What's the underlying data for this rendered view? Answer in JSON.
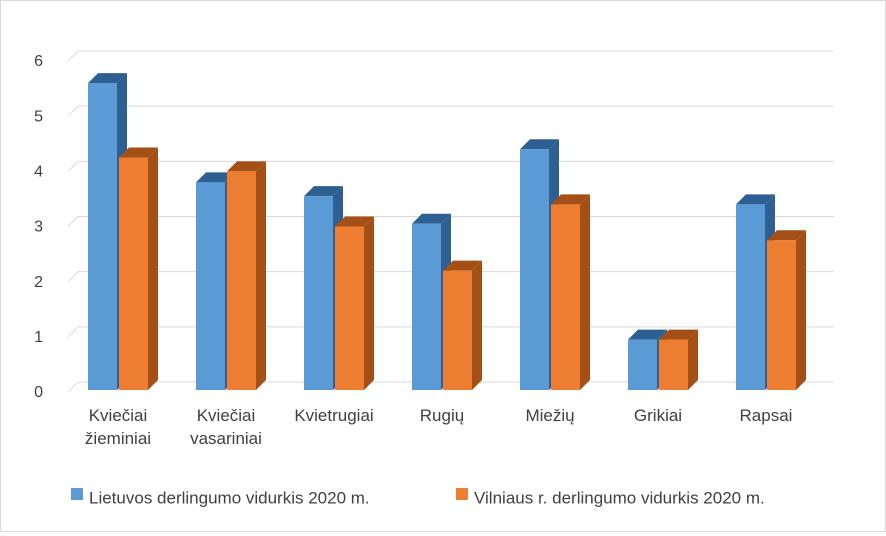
{
  "chart_data": {
    "type": "bar",
    "style": "3d-clustered-column",
    "title": "",
    "xlabel": "",
    "ylabel": "",
    "ylim": [
      0,
      6
    ],
    "yticks": [
      0,
      1,
      2,
      3,
      4,
      5,
      6
    ],
    "grid": true,
    "legend_position": "bottom",
    "categories": [
      [
        "Kviečiai",
        "žieminiai"
      ],
      [
        "Kviečiai",
        "vasariniai"
      ],
      [
        "Kvietrugiai"
      ],
      [
        "Rugių"
      ],
      [
        "Miežių"
      ],
      [
        "Grikiai"
      ],
      [
        "Rapsai"
      ]
    ],
    "series": [
      {
        "name": "Lietuvos derlingumo vidurkis 2020 m.",
        "color": "#5b9bd5",
        "side_color": "#2e5f93",
        "values": [
          5.6,
          3.8,
          3.55,
          3.05,
          4.4,
          0.95,
          3.4
        ]
      },
      {
        "name": "Vilniaus r. derlingumo vidurkis 2020 m.",
        "color": "#ed7d31",
        "side_color": "#a34f16",
        "values": [
          4.25,
          4.0,
          3.0,
          2.2,
          3.4,
          0.95,
          2.75
        ]
      }
    ]
  }
}
